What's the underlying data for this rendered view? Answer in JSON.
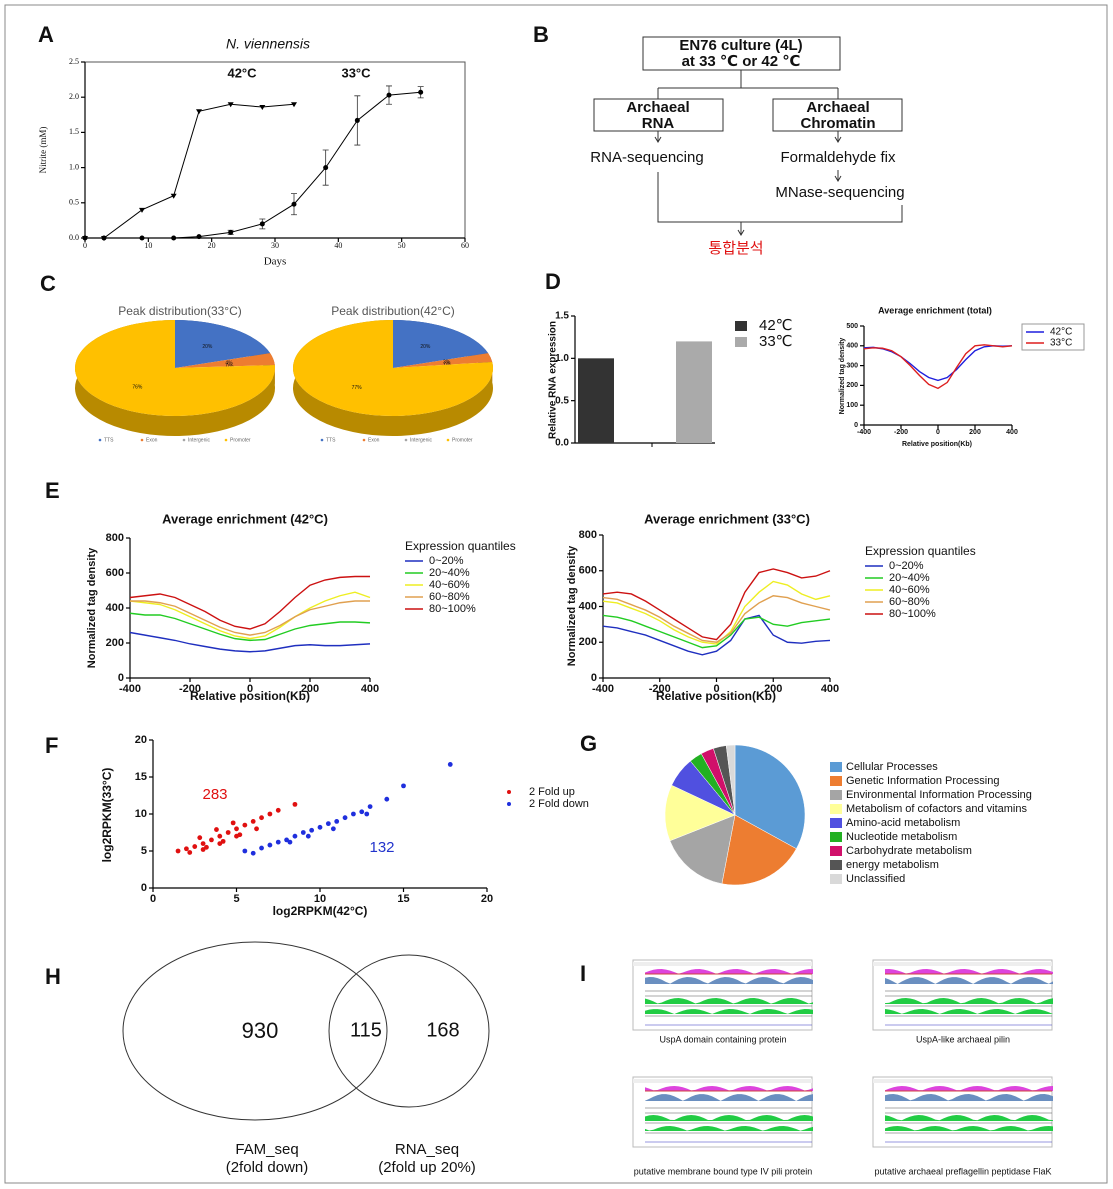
{
  "panels": [
    "A",
    "B",
    "C",
    "D",
    "E",
    "F",
    "G",
    "H",
    "I"
  ],
  "chart_data": [
    {
      "type": "line",
      "title": "N. viennensis",
      "xlabel": "Days",
      "ylabel": "Nitrite (mM)",
      "xlim": [
        0,
        60
      ],
      "xticks": [
        0,
        10,
        20,
        30,
        40,
        50,
        60
      ],
      "ylim": [
        0,
        2.5
      ],
      "yticks": [
        {
          "value": 0,
          "label": "0.0"
        },
        0.5,
        {
          "value": 1,
          "label": "1.0"
        },
        1.5,
        {
          "value": 2,
          "label": "2.0"
        },
        2.5
      ],
      "series": [
        {
          "name": "42°C",
          "color": "#000000",
          "marker": "triangle-down",
          "x": [
            0,
            3,
            9,
            14,
            18,
            23,
            28,
            33
          ],
          "values": [
            0,
            0,
            0.4,
            0.6,
            1.8,
            1.9,
            1.86,
            1.9
          ]
        },
        {
          "name": "33°C",
          "color": "#000000",
          "marker": "circle",
          "x": [
            0,
            3,
            9,
            14,
            18,
            23,
            28,
            33,
            38,
            43,
            48,
            53
          ],
          "values": [
            0,
            0,
            0,
            0,
            0.02,
            0.08,
            0.2,
            0.48,
            1.0,
            1.67,
            2.03,
            2.07
          ],
          "errors": [
            0,
            0,
            0,
            0,
            0,
            0.03,
            0.07,
            0.15,
            0.25,
            0.35,
            0.13,
            0.08
          ]
        }
      ]
    },
    {
      "type": "pie",
      "3d": true,
      "title": "Peak distribution(33°C)",
      "categories": [
        "TTS",
        "Exon",
        "Intergenic",
        "Promoter"
      ],
      "colors": [
        "#4472c4",
        "#ed7d31",
        "#a5a5a5",
        "#ffc000"
      ],
      "values": [
        20,
        4,
        0,
        76
      ],
      "value_labels": [
        "20%",
        "4%",
        "0%",
        "76%"
      ]
    },
    {
      "type": "pie",
      "3d": true,
      "title": "Peak distribution(42°C)",
      "categories": [
        "TTS",
        "Exon",
        "Intergenic",
        "Promoter"
      ],
      "colors": [
        "#4472c4",
        "#ed7d31",
        "#a5a5a5",
        "#ffc000"
      ],
      "values": [
        20,
        3,
        0,
        77
      ],
      "value_labels": [
        "20%",
        "3%",
        "0%",
        "77%"
      ]
    },
    {
      "type": "bar",
      "ylabel": "Relative RNA expression",
      "categories": [
        null
      ],
      "ylim": [
        0,
        1.5
      ],
      "yticks": [
        {
          "value": 0,
          "label": "0.0"
        },
        0.5,
        {
          "value": 1,
          "label": "1.0"
        },
        1.5
      ],
      "series": [
        {
          "name": "42℃",
          "color": "#333333",
          "values": [
            1.0
          ]
        },
        {
          "name": "33℃",
          "color": "#aaaaaa",
          "values": [
            1.2
          ]
        }
      ]
    },
    {
      "type": "line",
      "title": "Average enrichment (total)",
      "xlabel": "Relative position(Kb)",
      "ylabel": "Normalized tag density",
      "x": [
        -400,
        -350,
        -300,
        -250,
        -200,
        -150,
        -100,
        -50,
        0,
        50,
        100,
        150,
        200,
        250,
        300,
        350,
        400
      ],
      "xlim": [
        -400,
        400
      ],
      "xticks": [
        -400,
        -200,
        0,
        200,
        400
      ],
      "ylim": [
        0,
        500
      ],
      "yticks": [
        0,
        100,
        200,
        300,
        400,
        500
      ],
      "series": [
        {
          "name": "42°C",
          "color": "#1f1fdd",
          "values": [
            390,
            392,
            385,
            370,
            345,
            310,
            270,
            240,
            225,
            240,
            280,
            330,
            375,
            395,
            400,
            398,
            400
          ]
        },
        {
          "name": "33°C",
          "color": "#dd1f1f",
          "values": [
            385,
            390,
            388,
            375,
            345,
            300,
            250,
            205,
            185,
            215,
            290,
            360,
            400,
            405,
            400,
            395,
            400
          ]
        }
      ]
    },
    {
      "type": "line",
      "title": "Average enrichment (42°C)",
      "xlabel": "Relative position(Kb)",
      "ylabel": "Normalized tag density",
      "legend_title": "Expression quantiles",
      "x": [
        -400,
        -350,
        -300,
        -250,
        -200,
        -150,
        -100,
        -50,
        0,
        50,
        100,
        150,
        200,
        250,
        300,
        350,
        400
      ],
      "xlim": [
        -400,
        400
      ],
      "xticks": [
        -400,
        -200,
        0,
        200,
        400
      ],
      "ylim": [
        0,
        800
      ],
      "yticks": [
        0,
        200,
        400,
        600,
        800
      ],
      "series": [
        {
          "name": "0~20%",
          "color": "#1f2fbf",
          "values": [
            260,
            245,
            230,
            215,
            195,
            180,
            165,
            155,
            150,
            155,
            170,
            185,
            190,
            185,
            185,
            190,
            195
          ]
        },
        {
          "name": "20~40%",
          "color": "#22cc22",
          "values": [
            370,
            360,
            360,
            340,
            310,
            280,
            250,
            225,
            215,
            220,
            250,
            280,
            300,
            310,
            320,
            320,
            315
          ]
        },
        {
          "name": "40~60%",
          "color": "#eeee22",
          "values": [
            440,
            430,
            420,
            390,
            350,
            310,
            270,
            240,
            225,
            240,
            290,
            350,
            400,
            440,
            470,
            490,
            460
          ]
        },
        {
          "name": "60~80%",
          "color": "#e0a050",
          "values": [
            440,
            440,
            430,
            410,
            370,
            330,
            290,
            260,
            245,
            260,
            300,
            350,
            390,
            410,
            430,
            440,
            440
          ]
        },
        {
          "name": "80~100%",
          "color": "#cc1111",
          "values": [
            460,
            470,
            480,
            460,
            420,
            380,
            330,
            295,
            280,
            310,
            380,
            460,
            530,
            560,
            575,
            580,
            580
          ]
        }
      ]
    },
    {
      "type": "line",
      "title": "Average enrichment (33°C)",
      "xlabel": "Relative position(Kb)",
      "ylabel": "Normalized tag density",
      "legend_title": "Expression quantiles",
      "x": [
        -400,
        -350,
        -300,
        -250,
        -200,
        -150,
        -100,
        -50,
        0,
        50,
        100,
        150,
        200,
        250,
        300,
        350,
        400
      ],
      "xlim": [
        -400,
        400
      ],
      "xticks": [
        -400,
        -200,
        0,
        200,
        400
      ],
      "ylim": [
        0,
        800
      ],
      "yticks": [
        0,
        200,
        400,
        600,
        800
      ],
      "series": [
        {
          "name": "0~20%",
          "color": "#1f2fbf",
          "values": [
            290,
            280,
            260,
            240,
            210,
            180,
            150,
            130,
            150,
            210,
            330,
            350,
            240,
            200,
            195,
            205,
            210
          ]
        },
        {
          "name": "20~40%",
          "color": "#22cc22",
          "values": [
            350,
            340,
            320,
            290,
            260,
            230,
            200,
            170,
            180,
            240,
            330,
            340,
            300,
            290,
            310,
            320,
            330
          ]
        },
        {
          "name": "40~60%",
          "color": "#eeee22",
          "values": [
            430,
            420,
            390,
            360,
            320,
            270,
            230,
            200,
            190,
            260,
            400,
            480,
            540,
            520,
            470,
            440,
            460
          ]
        },
        {
          "name": "60~80%",
          "color": "#e0a050",
          "values": [
            450,
            440,
            410,
            380,
            340,
            290,
            250,
            210,
            200,
            250,
            360,
            420,
            460,
            450,
            420,
            400,
            380
          ]
        },
        {
          "name": "80~100%",
          "color": "#cc1111",
          "values": [
            470,
            480,
            470,
            430,
            380,
            330,
            280,
            230,
            215,
            300,
            480,
            590,
            610,
            590,
            560,
            570,
            600
          ]
        }
      ]
    },
    {
      "type": "scatter",
      "xlabel": "log2RPKM(42°C)",
      "ylabel": "log2RPKM(33°C)",
      "xlim": [
        0,
        20
      ],
      "xticks": [
        0,
        5,
        10,
        15,
        20
      ],
      "ylim": [
        0,
        20
      ],
      "yticks": [
        0,
        5,
        10,
        15,
        20
      ],
      "annotations": [
        {
          "text": "283",
          "color": "#e01010"
        },
        {
          "text": "132",
          "color": "#2233cc"
        }
      ],
      "series": [
        {
          "name": "2 Fold up",
          "color": "#e01010",
          "x": [
            1.5,
            2,
            2.5,
            3,
            3,
            3.5,
            4,
            4,
            4.5,
            5,
            5,
            5.5,
            6,
            6.5,
            7,
            2.2,
            3.2,
            4.2,
            5.2,
            6.2,
            7.5,
            8.5,
            2.8,
            3.8,
            4.8
          ],
          "values": [
            5,
            5.3,
            5.6,
            6,
            5.2,
            6.5,
            7,
            6,
            7.5,
            8,
            7,
            8.5,
            9,
            9.5,
            10,
            4.8,
            5.5,
            6.3,
            7.2,
            8,
            10.5,
            11.3,
            6.8,
            7.9,
            8.8
          ]
        },
        {
          "name": "2 Fold down",
          "color": "#1f2fdd",
          "x": [
            5.5,
            6.5,
            7,
            7.5,
            8,
            8.5,
            9,
            9.5,
            10,
            10.5,
            11,
            11.5,
            12,
            12.5,
            13,
            14,
            15,
            17.8,
            6,
            8.2,
            9.3,
            10.8,
            12.8
          ],
          "values": [
            5,
            5.4,
            5.8,
            6.2,
            6.5,
            7,
            7.5,
            7.8,
            8.2,
            8.7,
            9,
            9.5,
            10,
            10.3,
            11,
            12,
            13.8,
            16.7,
            4.7,
            6.2,
            7,
            8,
            10
          ]
        }
      ]
    },
    {
      "type": "pie",
      "categories": [
        "Cellular Processes",
        "Genetic Information Processing",
        "Environmental Information Processing",
        "Metabolism of cofactors and vitamins",
        "Amino-acid metabolism",
        "Nucleotide metabolism",
        "Carbohydrate metabolism",
        "energy metabolism",
        "Unclassified"
      ],
      "colors": [
        "#5b9bd5",
        "#ed7d31",
        "#a5a5a5",
        "#ffff99",
        "#5050e0",
        "#22b022",
        "#d0106a",
        "#555555",
        "#d9d9d9"
      ],
      "values": [
        33,
        20,
        16,
        13,
        7,
        3,
        3,
        3,
        2
      ]
    }
  ],
  "diagram": {
    "nodes": [
      {
        "lines": [
          "EN76 culture (4L)",
          "at 33 ℃ or 42 ℃"
        ]
      },
      {
        "lines": [
          "Archaeal",
          "RNA"
        ]
      },
      {
        "lines": [
          "Archaeal",
          "Chromatin"
        ]
      },
      {
        "lines": [
          "RNA-sequencing"
        ]
      },
      {
        "lines": [
          "Formaldehyde fix"
        ]
      },
      {
        "lines": [
          "MNase-sequencing"
        ]
      },
      {
        "lines": [
          "통합분석"
        ]
      }
    ]
  },
  "venn": {
    "regions": [
      930,
      115,
      168
    ],
    "sets": [
      {
        "lines": [
          "FAM_seq",
          "(2fold down)"
        ]
      },
      {
        "lines": [
          "RNA_seq",
          "(2fold up 20%)"
        ]
      }
    ]
  },
  "tracks": {
    "captions": [
      "UspA domain containing protein",
      "UspA-like archaeal pilin",
      "putative membrane bound type IV pili protein",
      "putative archaeal preflagellin peptidase FlaK"
    ]
  }
}
